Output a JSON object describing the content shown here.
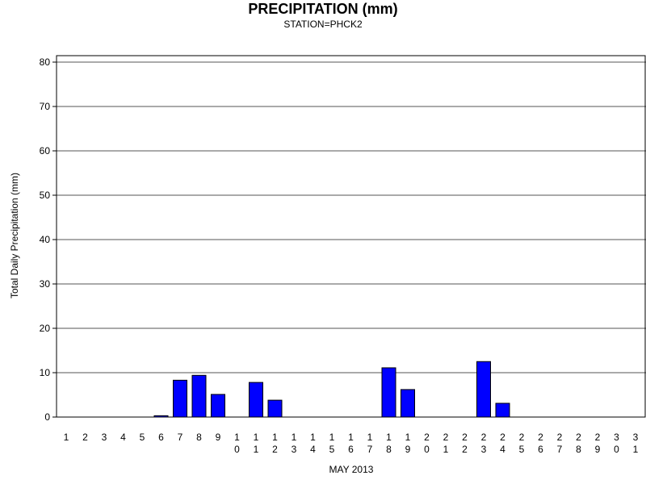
{
  "chart_data": {
    "type": "bar",
    "title": "PRECIPITATION (mm)",
    "subtitle": "STATION=PHCK2",
    "xlabel": "MAY 2013",
    "ylabel": "Total Daily Precipitation (mm)",
    "ylim": [
      0,
      80
    ],
    "yticks": [
      0,
      10,
      20,
      30,
      40,
      50,
      60,
      70,
      80
    ],
    "grid": true,
    "categories": [
      "1",
      "2",
      "3",
      "4",
      "5",
      "6",
      "7",
      "8",
      "9",
      "10",
      "11",
      "12",
      "13",
      "14",
      "15",
      "16",
      "17",
      "18",
      "19",
      "20",
      "21",
      "22",
      "23",
      "24",
      "25",
      "26",
      "27",
      "28",
      "29",
      "30",
      "31"
    ],
    "values": [
      0,
      0,
      0,
      0,
      0,
      0.3,
      8.3,
      9.4,
      5.1,
      0,
      7.8,
      3.8,
      0,
      0,
      0,
      0,
      0,
      11.1,
      6.2,
      0,
      0,
      0,
      12.5,
      3.1,
      0,
      0,
      0,
      0,
      0,
      0,
      0
    ],
    "bar_color": "#0000ff"
  }
}
